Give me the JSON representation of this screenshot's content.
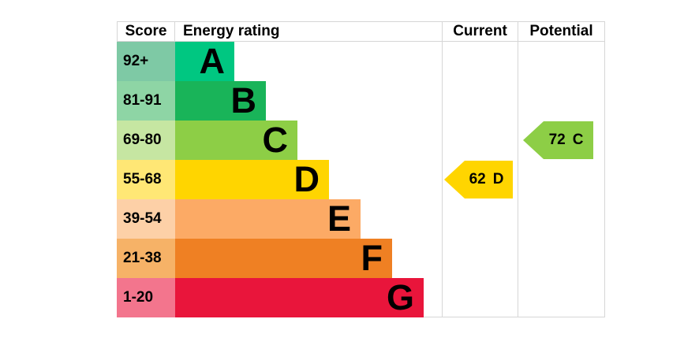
{
  "header": {
    "score": "Score",
    "energy_rating": "Energy rating",
    "current": "Current",
    "potential": "Potential"
  },
  "bands": [
    {
      "letter": "A",
      "score": "92+",
      "bar_color": "#00c781",
      "score_bg": "#7ec9a5"
    },
    {
      "letter": "B",
      "score": "81-91",
      "bar_color": "#19b459",
      "score_bg": "#8ed5a5"
    },
    {
      "letter": "C",
      "score": "69-80",
      "bar_color": "#8dce46",
      "score_bg": "#c6e6a2"
    },
    {
      "letter": "D",
      "score": "55-68",
      "bar_color": "#ffd500",
      "score_bg": "#ffe775"
    },
    {
      "letter": "E",
      "score": "39-54",
      "bar_color": "#fcaa65",
      "score_bg": "#fdd0a7"
    },
    {
      "letter": "F",
      "score": "21-38",
      "bar_color": "#ef8023",
      "score_bg": "#f6b267"
    },
    {
      "letter": "G",
      "score": "1-20",
      "bar_color": "#e9153b",
      "score_bg": "#f3758d"
    }
  ],
  "current": {
    "value": "62",
    "band": "D",
    "color": "#ffd500"
  },
  "potential": {
    "value": "72",
    "band": "C",
    "color": "#8dce46"
  },
  "colors": {
    "border": "#d6d6d6",
    "text": "#000000",
    "background": "#ffffff"
  },
  "chart_data": {
    "type": "bar",
    "title": "Energy rating",
    "columns": [
      "Score",
      "Energy rating",
      "Current",
      "Potential"
    ],
    "categories": [
      "A",
      "B",
      "C",
      "D",
      "E",
      "F",
      "G"
    ],
    "score_ranges": [
      "92+",
      "81-91",
      "69-80",
      "55-68",
      "39-54",
      "21-38",
      "1-20"
    ],
    "bar_lengths_relative": [
      1,
      2,
      3,
      4,
      5,
      6,
      7
    ],
    "band_colors": [
      "#00c781",
      "#19b459",
      "#8dce46",
      "#ffd500",
      "#fcaa65",
      "#ef8023",
      "#e9153b"
    ],
    "current": {
      "score": 62,
      "band": "D"
    },
    "potential": {
      "score": 72,
      "band": "C"
    },
    "legend_position": "none",
    "grid": false
  }
}
